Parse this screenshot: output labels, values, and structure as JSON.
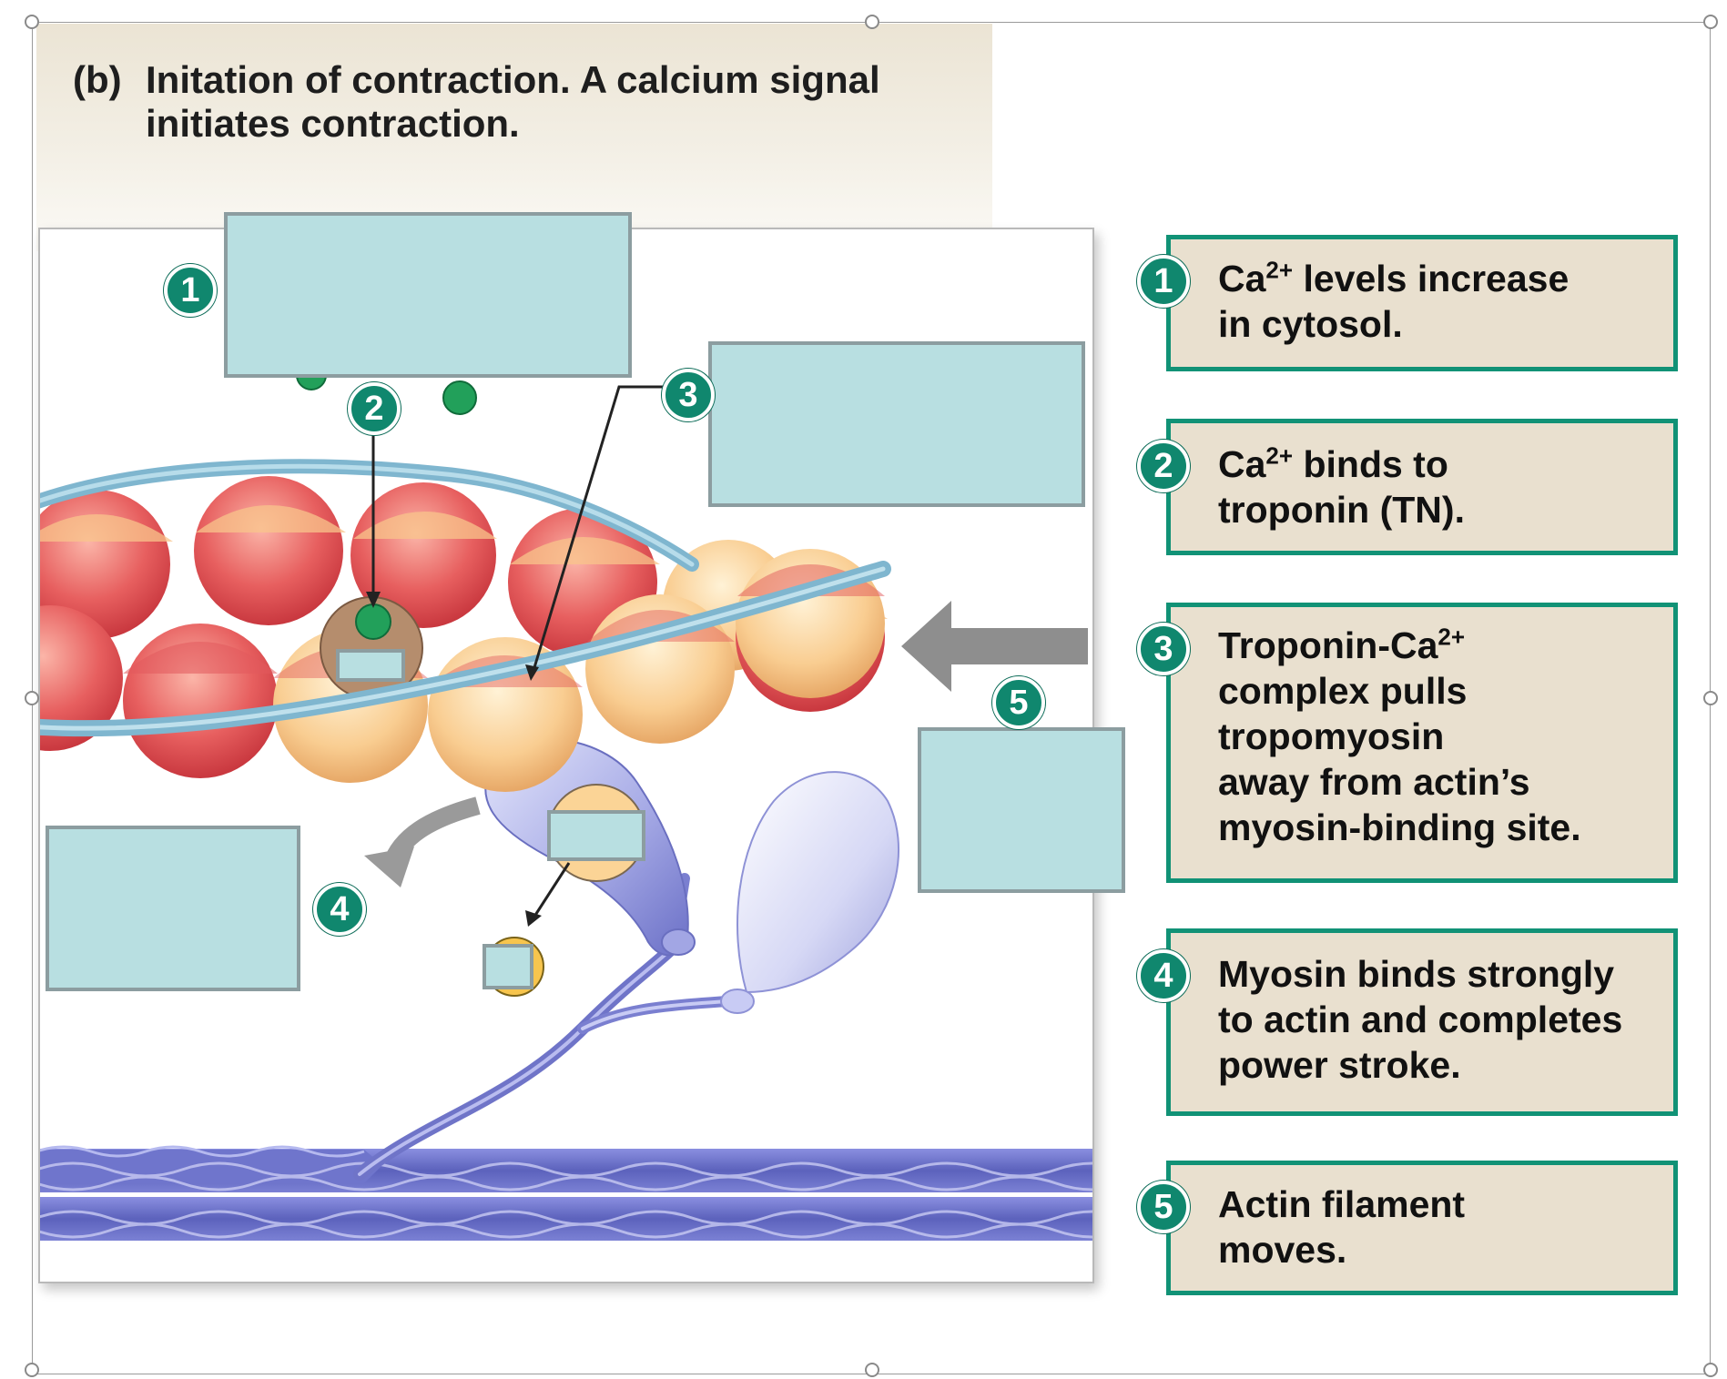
{
  "figure": {
    "title_part": "(b)",
    "title_text": "Initation of contraction. A calcium signal",
    "title_line2": "initiates contraction."
  },
  "diagram_badges": [
    "1",
    "2",
    "3",
    "4",
    "5"
  ],
  "steps": [
    {
      "number": "1",
      "pre": "Ca",
      "sup": "2+",
      "post": " levels increase\nin cytosol."
    },
    {
      "number": "2",
      "pre": "Ca",
      "sup": "2+",
      "post": " binds to\ntroponin (TN)."
    },
    {
      "number": "3",
      "pre": "Troponin-Ca",
      "sup": "2+",
      "post": "\ncomplex pulls\ntropomyosin\naway from actin’s\nmyosin-binding site."
    },
    {
      "number": "4",
      "pre": "Myosin binds strongly\nto actin and completes\npower stroke.",
      "sup": "",
      "post": ""
    },
    {
      "number": "5",
      "pre": "Actin filament\nmoves.",
      "sup": "",
      "post": ""
    }
  ],
  "colors": {
    "badge_green": "#10876e",
    "step_border": "#119276",
    "step_fill": "#e9e0cf",
    "blank_fill": "#b8dfe1",
    "tropomyosin": "#8fc3d8",
    "actin_red": "#e6575b",
    "actin_peach": "#f7c98f",
    "myosin": "#8b90d6",
    "thick_filament": "#5a61b8"
  }
}
